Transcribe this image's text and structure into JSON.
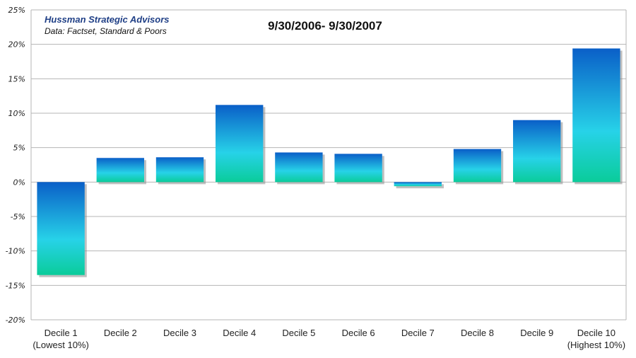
{
  "source": {
    "org": "Hussman Strategic Advisors",
    "data": "Data: Factset, Standard & Poors"
  },
  "chart_data": {
    "type": "bar",
    "title": "9/30/2006- 9/30/2007",
    "xlabel": "",
    "ylabel": "",
    "categories": [
      [
        "Decile 1",
        "(Lowest 10%)"
      ],
      [
        "Decile 2"
      ],
      [
        "Decile 3"
      ],
      [
        "Decile 4"
      ],
      [
        "Decile 5"
      ],
      [
        "Decile 6"
      ],
      [
        "Decile 7"
      ],
      [
        "Decile 8"
      ],
      [
        "Decile 9"
      ],
      [
        "Decile 10",
        "(Highest 10%)"
      ]
    ],
    "values": [
      -13.5,
      3.5,
      3.6,
      11.2,
      4.3,
      4.1,
      -0.6,
      4.8,
      9.0,
      19.4
    ],
    "ylim": [
      -20,
      25
    ],
    "yticks": [
      25,
      20,
      15,
      10,
      5,
      0,
      -5,
      -10,
      -15,
      -20
    ],
    "ytick_format": "percent",
    "grid": true,
    "colors": {
      "bar_top": "#0a5fc8",
      "bar_mid": "#27d2e8",
      "bar_bottom": "#0acc9a",
      "grid": "#b4b4b4",
      "shadow": "#8c8c8c"
    }
  }
}
